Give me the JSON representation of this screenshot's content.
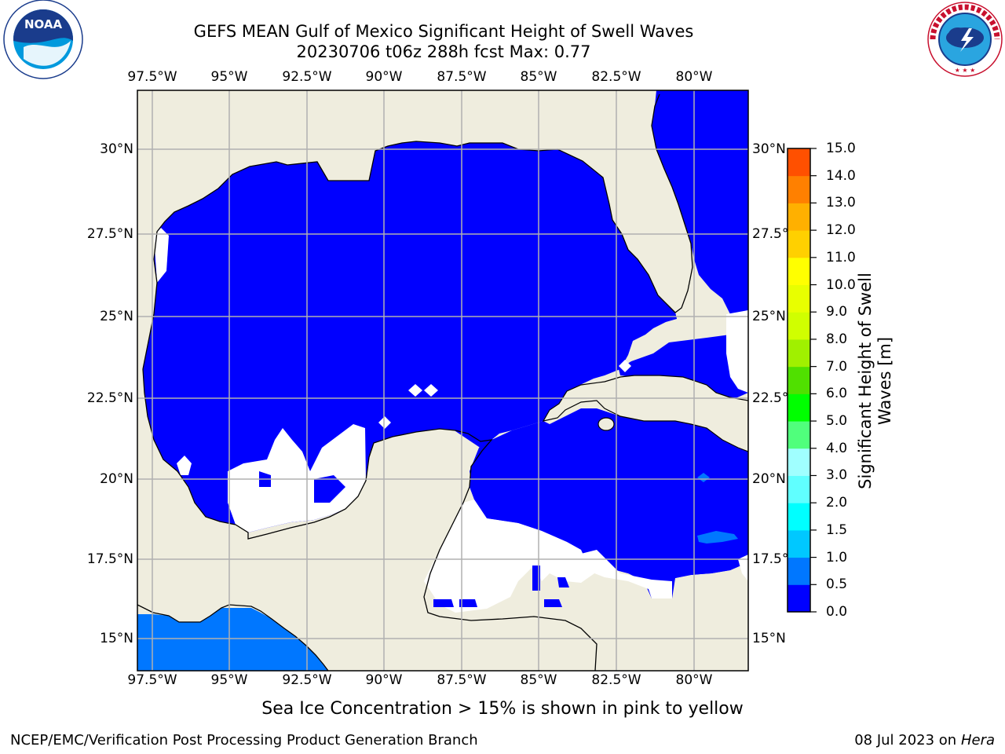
{
  "header": {
    "title_line1": "GEFS MEAN Gulf of Mexico Significant Height of Swell Waves",
    "title_line2": "20230706 t06z 288h fcst   Max: 0.77"
  },
  "logos": {
    "left_text": "NOAA",
    "left_ring_text": "NATIONAL OCEANIC AND ATMOSPHERIC ADMINISTRATION · U.S. DEPARTMENT OF COMMERCE",
    "right_ring_text": "NATIONAL WEATHER SERVICE"
  },
  "map": {
    "lon_labels": [
      "97.5°W",
      "95°W",
      "92.5°W",
      "90°W",
      "87.5°W",
      "85°W",
      "82.5°W",
      "80°W"
    ],
    "lat_labels": [
      "30°N",
      "27.5°N",
      "25°N",
      "22.5°N",
      "20°N",
      "17.5°N",
      "15°N"
    ],
    "lat_labels_right": [
      "30°N",
      "27.5°N",
      "25°N",
      "22.5°N",
      "20°N",
      "17.5°N",
      "15°N"
    ],
    "colors": {
      "land": "#efedde",
      "ocean_low": "#0000ff",
      "ocean_mid": "#0077ff",
      "grid": "#b0b0b0",
      "coast": "#000000"
    }
  },
  "colorbar": {
    "title_line1": "Significant Height of Swell",
    "title_line2": "Waves [m]",
    "tick_labels": [
      "0.0",
      "0.5",
      "1.0",
      "1.5",
      "2.0",
      "3.0",
      "4.0",
      "5.0",
      "6.0",
      "7.0",
      "8.0",
      "9.0",
      "10.0",
      "11.0",
      "12.0",
      "13.0",
      "14.0",
      "15.0"
    ],
    "colors": [
      "#0000ff",
      "#0077ff",
      "#00c8ff",
      "#00ffff",
      "#60ffff",
      "#a0ffff",
      "#50ff7c",
      "#00ff00",
      "#50e000",
      "#a0f000",
      "#d0ff00",
      "#e8ff00",
      "#ffff00",
      "#ffd000",
      "#ffb000",
      "#ff8000",
      "#ff5000",
      "#ff2000"
    ]
  },
  "footer": {
    "note": "Sea Ice Concentration > 15% is shown in pink to yellow",
    "credit_left": "NCEP/EMC/Verification Post Processing Product Generation Branch",
    "credit_right_prefix": "08 Jul 2023 on ",
    "credit_right_host": "Hera"
  }
}
